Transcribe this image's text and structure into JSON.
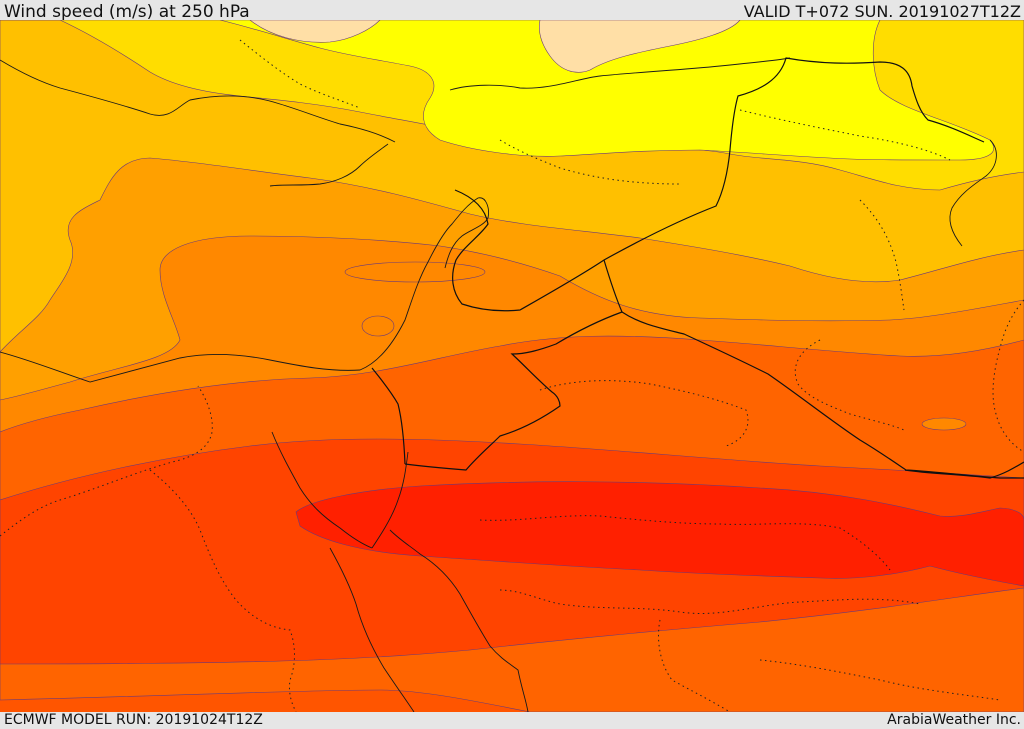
{
  "header": {
    "title": "Wind speed (m/s) at 250 hPa",
    "valid": "VALID T+072 SUN. 20191027T12Z"
  },
  "footer": {
    "model_run": "ECMWF MODEL RUN: 20191024T12Z",
    "credit": "ArabiaWeather Inc."
  },
  "map": {
    "field": "wind speed at 250 hPa",
    "region": "Eastern Mediterranean, Levant, Egypt, northern Arabia",
    "band_colors": [
      "#ffdfa6",
      "#ffff00",
      "#ffdd00",
      "#ffc000",
      "#ffa000",
      "#ff8800",
      "#ff6600",
      "#ff4400",
      "#ff2000"
    ]
  }
}
